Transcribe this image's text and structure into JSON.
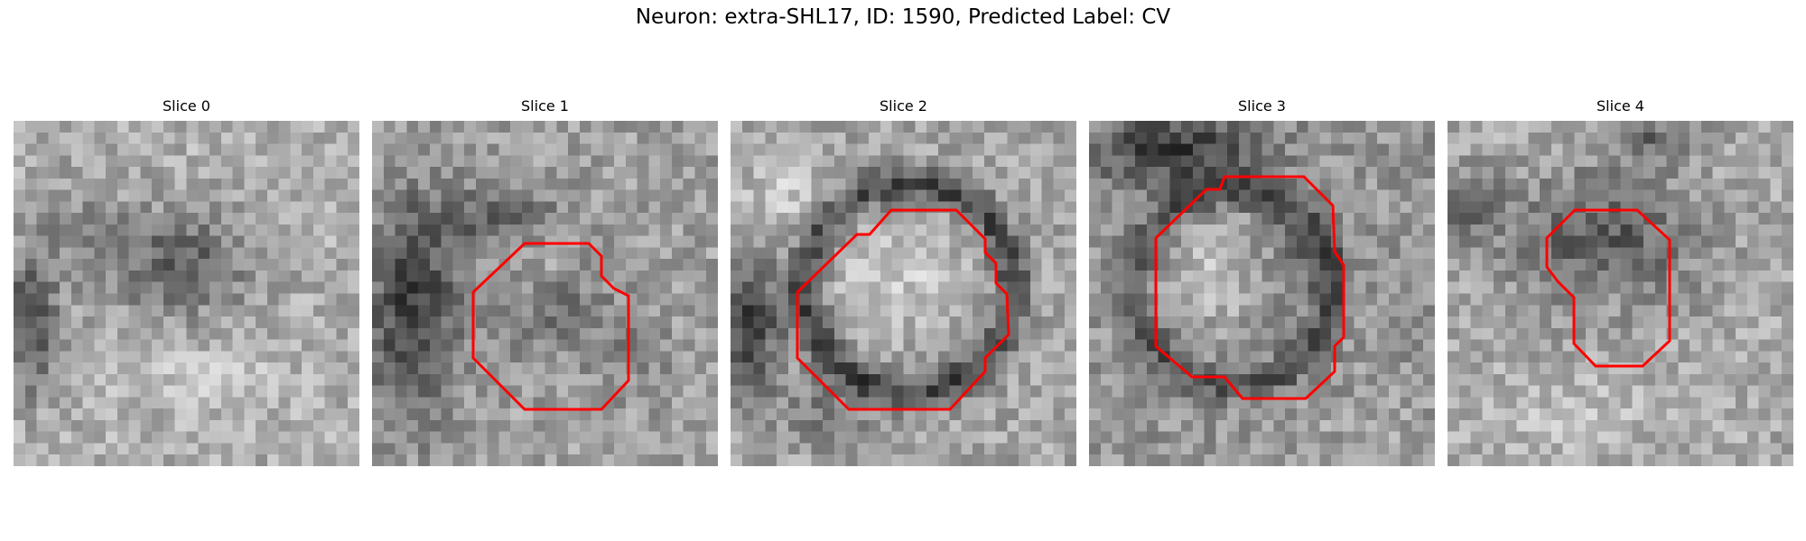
{
  "figure": {
    "title": "Neuron: extra-SHL17, ID: 1590, Predicted Label: CV",
    "contour_color": "#ff0000"
  },
  "slices": [
    {
      "title": "Slice 0",
      "contour": false
    },
    {
      "title": "Slice 1",
      "contour": true
    },
    {
      "title": "Slice 2",
      "contour": true
    },
    {
      "title": "Slice 3",
      "contour": true
    },
    {
      "title": "Slice 4",
      "contour": true
    }
  ]
}
